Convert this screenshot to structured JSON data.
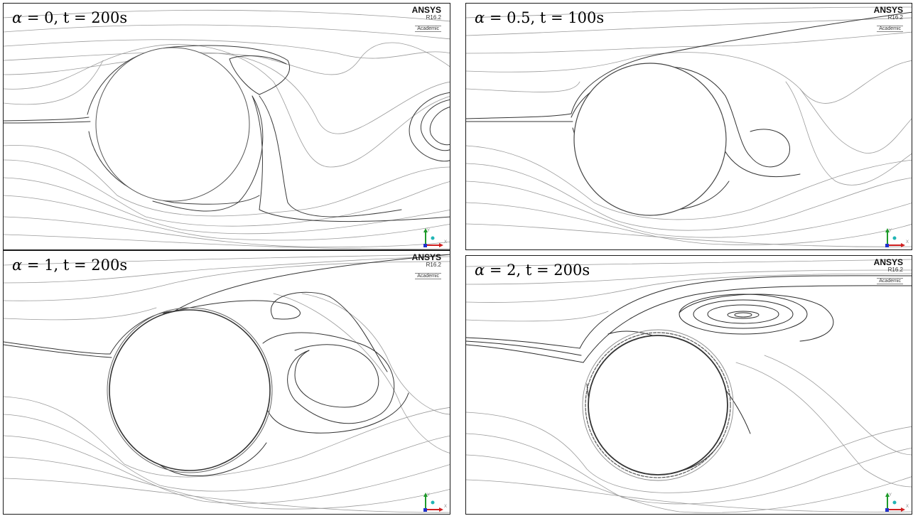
{
  "panels": [
    {
      "id": "p1",
      "alpha": "α",
      "label_rest": " = 0, t = 200s",
      "brand": "ANSYS",
      "version": "R16.2",
      "tier": "Academic"
    },
    {
      "id": "p2",
      "alpha": "α",
      "label_rest": " = 0.5, t = 100s",
      "brand": "ANSYS",
      "version": "R16.2",
      "tier": "Academic"
    },
    {
      "id": "p3",
      "alpha": "α",
      "label_rest": " = 1, t = 200s",
      "brand": "ANSYS",
      "version": "R16.2",
      "tier": "Academic"
    },
    {
      "id": "p4",
      "alpha": "α",
      "label_rest": " = 2, t = 200s",
      "brand": "ANSYS",
      "version": "R16.2",
      "tier": "Academic"
    }
  ],
  "axis_triad": {
    "y_label": "Y",
    "x_label": "X",
    "y_color": "#1f9a2a",
    "x_color": "#d02020",
    "z_color": "#21b5b5",
    "origin_color": "#2233cc"
  },
  "colors": {
    "streamline_dark": "#2a2a2a",
    "streamline_light": "#9a9a9a",
    "border": "#1a1a1a"
  }
}
